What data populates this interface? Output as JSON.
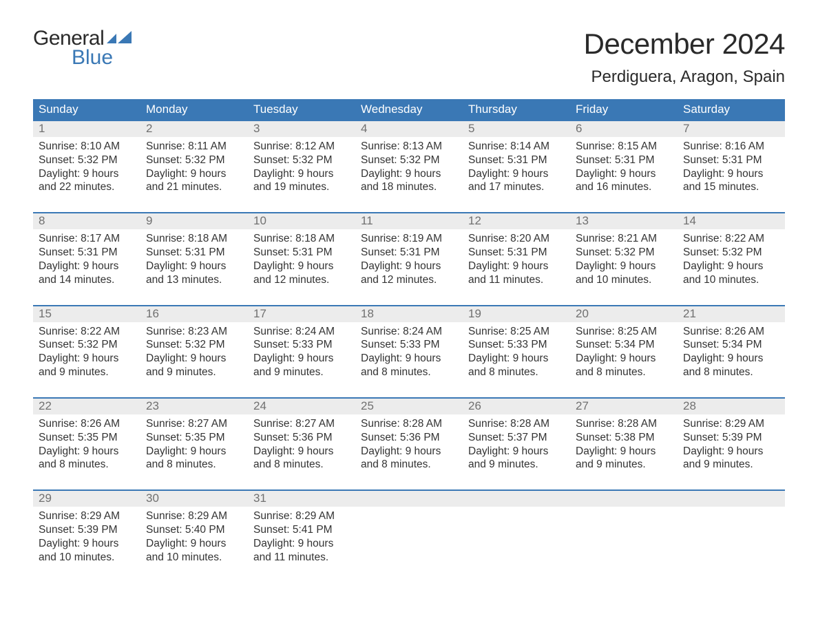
{
  "logo": {
    "general": "General",
    "blue": "Blue",
    "flag_color": "#3a78b5"
  },
  "title": "December 2024",
  "location": "Perdiguera, Aragon, Spain",
  "colors": {
    "header_bg": "#3a78b5",
    "header_text": "#ffffff",
    "week_border": "#3a78b5",
    "daynum_bg": "#ececec",
    "daynum_text": "#707070",
    "body_text": "#333333",
    "background": "#ffffff"
  },
  "typography": {
    "title_fontsize": 42,
    "location_fontsize": 24,
    "dow_fontsize": 17,
    "daynum_fontsize": 17,
    "cell_fontsize": 15.5,
    "font_family": "Arial"
  },
  "days_of_week": [
    "Sunday",
    "Monday",
    "Tuesday",
    "Wednesday",
    "Thursday",
    "Friday",
    "Saturday"
  ],
  "labels": {
    "sunrise": "Sunrise:",
    "sunset": "Sunset:",
    "daylight": "Daylight:"
  },
  "weeks": [
    [
      {
        "n": "1",
        "sunrise": "8:10 AM",
        "sunset": "5:32 PM",
        "daylight1": "9 hours",
        "daylight2": "and 22 minutes."
      },
      {
        "n": "2",
        "sunrise": "8:11 AM",
        "sunset": "5:32 PM",
        "daylight1": "9 hours",
        "daylight2": "and 21 minutes."
      },
      {
        "n": "3",
        "sunrise": "8:12 AM",
        "sunset": "5:32 PM",
        "daylight1": "9 hours",
        "daylight2": "and 19 minutes."
      },
      {
        "n": "4",
        "sunrise": "8:13 AM",
        "sunset": "5:32 PM",
        "daylight1": "9 hours",
        "daylight2": "and 18 minutes."
      },
      {
        "n": "5",
        "sunrise": "8:14 AM",
        "sunset": "5:31 PM",
        "daylight1": "9 hours",
        "daylight2": "and 17 minutes."
      },
      {
        "n": "6",
        "sunrise": "8:15 AM",
        "sunset": "5:31 PM",
        "daylight1": "9 hours",
        "daylight2": "and 16 minutes."
      },
      {
        "n": "7",
        "sunrise": "8:16 AM",
        "sunset": "5:31 PM",
        "daylight1": "9 hours",
        "daylight2": "and 15 minutes."
      }
    ],
    [
      {
        "n": "8",
        "sunrise": "8:17 AM",
        "sunset": "5:31 PM",
        "daylight1": "9 hours",
        "daylight2": "and 14 minutes."
      },
      {
        "n": "9",
        "sunrise": "8:18 AM",
        "sunset": "5:31 PM",
        "daylight1": "9 hours",
        "daylight2": "and 13 minutes."
      },
      {
        "n": "10",
        "sunrise": "8:18 AM",
        "sunset": "5:31 PM",
        "daylight1": "9 hours",
        "daylight2": "and 12 minutes."
      },
      {
        "n": "11",
        "sunrise": "8:19 AM",
        "sunset": "5:31 PM",
        "daylight1": "9 hours",
        "daylight2": "and 12 minutes."
      },
      {
        "n": "12",
        "sunrise": "8:20 AM",
        "sunset": "5:31 PM",
        "daylight1": "9 hours",
        "daylight2": "and 11 minutes."
      },
      {
        "n": "13",
        "sunrise": "8:21 AM",
        "sunset": "5:32 PM",
        "daylight1": "9 hours",
        "daylight2": "and 10 minutes."
      },
      {
        "n": "14",
        "sunrise": "8:22 AM",
        "sunset": "5:32 PM",
        "daylight1": "9 hours",
        "daylight2": "and 10 minutes."
      }
    ],
    [
      {
        "n": "15",
        "sunrise": "8:22 AM",
        "sunset": "5:32 PM",
        "daylight1": "9 hours",
        "daylight2": "and 9 minutes."
      },
      {
        "n": "16",
        "sunrise": "8:23 AM",
        "sunset": "5:32 PM",
        "daylight1": "9 hours",
        "daylight2": "and 9 minutes."
      },
      {
        "n": "17",
        "sunrise": "8:24 AM",
        "sunset": "5:33 PM",
        "daylight1": "9 hours",
        "daylight2": "and 9 minutes."
      },
      {
        "n": "18",
        "sunrise": "8:24 AM",
        "sunset": "5:33 PM",
        "daylight1": "9 hours",
        "daylight2": "and 8 minutes."
      },
      {
        "n": "19",
        "sunrise": "8:25 AM",
        "sunset": "5:33 PM",
        "daylight1": "9 hours",
        "daylight2": "and 8 minutes."
      },
      {
        "n": "20",
        "sunrise": "8:25 AM",
        "sunset": "5:34 PM",
        "daylight1": "9 hours",
        "daylight2": "and 8 minutes."
      },
      {
        "n": "21",
        "sunrise": "8:26 AM",
        "sunset": "5:34 PM",
        "daylight1": "9 hours",
        "daylight2": "and 8 minutes."
      }
    ],
    [
      {
        "n": "22",
        "sunrise": "8:26 AM",
        "sunset": "5:35 PM",
        "daylight1": "9 hours",
        "daylight2": "and 8 minutes."
      },
      {
        "n": "23",
        "sunrise": "8:27 AM",
        "sunset": "5:35 PM",
        "daylight1": "9 hours",
        "daylight2": "and 8 minutes."
      },
      {
        "n": "24",
        "sunrise": "8:27 AM",
        "sunset": "5:36 PM",
        "daylight1": "9 hours",
        "daylight2": "and 8 minutes."
      },
      {
        "n": "25",
        "sunrise": "8:28 AM",
        "sunset": "5:36 PM",
        "daylight1": "9 hours",
        "daylight2": "and 8 minutes."
      },
      {
        "n": "26",
        "sunrise": "8:28 AM",
        "sunset": "5:37 PM",
        "daylight1": "9 hours",
        "daylight2": "and 9 minutes."
      },
      {
        "n": "27",
        "sunrise": "8:28 AM",
        "sunset": "5:38 PM",
        "daylight1": "9 hours",
        "daylight2": "and 9 minutes."
      },
      {
        "n": "28",
        "sunrise": "8:29 AM",
        "sunset": "5:39 PM",
        "daylight1": "9 hours",
        "daylight2": "and 9 minutes."
      }
    ],
    [
      {
        "n": "29",
        "sunrise": "8:29 AM",
        "sunset": "5:39 PM",
        "daylight1": "9 hours",
        "daylight2": "and 10 minutes."
      },
      {
        "n": "30",
        "sunrise": "8:29 AM",
        "sunset": "5:40 PM",
        "daylight1": "9 hours",
        "daylight2": "and 10 minutes."
      },
      {
        "n": "31",
        "sunrise": "8:29 AM",
        "sunset": "5:41 PM",
        "daylight1": "9 hours",
        "daylight2": "and 11 minutes."
      },
      null,
      null,
      null,
      null
    ]
  ]
}
